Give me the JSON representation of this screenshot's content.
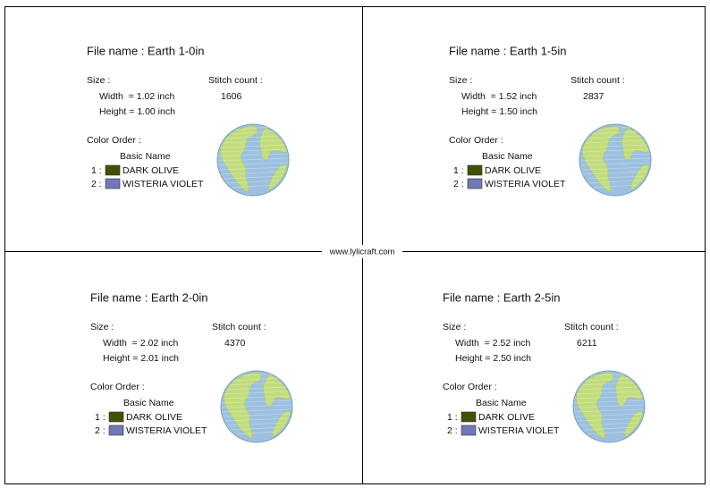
{
  "website": "www.lylicraft.com",
  "panels": [
    {
      "file_name": "File name : Earth 1-0in",
      "size_label": "Size :",
      "width": "Width  = 1.02 inch",
      "height": "Height = 1.00 inch",
      "stitch_label": "Stitch count :",
      "stitch_count": "1606",
      "color_order_label": "Color Order :",
      "basic_name_label": "Basic Name",
      "colors": [
        {
          "index": "1 :",
          "name": "DARK OLIVE",
          "color": "#3f5206"
        },
        {
          "index": "2 :",
          "name": "WISTERIA VIOLET",
          "color": "#7078b8"
        }
      ]
    },
    {
      "file_name": "File name : Earth 1-5in",
      "size_label": "Size :",
      "width": "Width  = 1.52 inch",
      "height": "Height = 1.50 inch",
      "stitch_label": "Stitch count :",
      "stitch_count": "2837",
      "color_order_label": "Color Order :",
      "basic_name_label": "Basic Name",
      "colors": [
        {
          "index": "1 :",
          "name": "DARK OLIVE",
          "color": "#3f5206"
        },
        {
          "index": "2 :",
          "name": "WISTERIA VIOLET",
          "color": "#7078b8"
        }
      ]
    },
    {
      "file_name": "File name : Earth 2-0in",
      "size_label": "Size :",
      "width": "Width  = 2.02 inch",
      "height": "Height = 2.01 inch",
      "stitch_label": "Stitch count :",
      "stitch_count": "4370",
      "color_order_label": "Color Order :",
      "basic_name_label": "Basic Name",
      "colors": [
        {
          "index": "1 :",
          "name": "DARK OLIVE",
          "color": "#3f5206"
        },
        {
          "index": "2 :",
          "name": "WISTERIA VIOLET",
          "color": "#7078b8"
        }
      ]
    },
    {
      "file_name": "File name : Earth 2-5in",
      "size_label": "Size :",
      "width": "Width  = 2.52 inch",
      "height": "Height = 2.50 inch",
      "stitch_label": "Stitch count :",
      "stitch_count": "6211",
      "color_order_label": "Color Order :",
      "basic_name_label": "Basic Name",
      "colors": [
        {
          "index": "1 :",
          "name": "DARK OLIVE",
          "color": "#3f5206"
        },
        {
          "index": "2 :",
          "name": "WISTERIA VIOLET",
          "color": "#7078b8"
        }
      ]
    }
  ]
}
